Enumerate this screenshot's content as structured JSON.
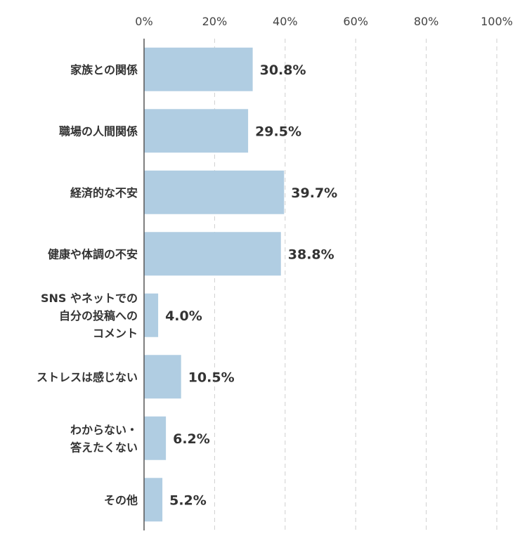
{
  "chart_data": {
    "type": "bar",
    "orientation": "horizontal",
    "categories": [
      [
        "家族との関係"
      ],
      [
        "職場の人間関係"
      ],
      [
        "経済的な不安"
      ],
      [
        "健康や体調の不安"
      ],
      [
        "SNS やネットでの",
        "自分の投稿への",
        "コメント"
      ],
      [
        "ストレスは感じない"
      ],
      [
        "わからない・",
        "答えたくない"
      ],
      [
        "その他"
      ]
    ],
    "values": [
      30.8,
      29.5,
      39.7,
      38.8,
      4.0,
      10.5,
      6.2,
      5.2
    ],
    "value_labels": [
      "30.8%",
      "29.5%",
      "39.7%",
      "38.8%",
      "4.0%",
      "10.5%",
      "6.2%",
      "5.2%"
    ],
    "xlim": [
      0,
      100
    ],
    "x_ticks": [
      0,
      20,
      40,
      60,
      80,
      100
    ],
    "x_tick_labels": [
      "0%",
      "20%",
      "40%",
      "60%",
      "80%",
      "100%"
    ],
    "grid": true,
    "bar_color": "#b0cde2",
    "title": "",
    "xlabel": "",
    "ylabel": ""
  }
}
